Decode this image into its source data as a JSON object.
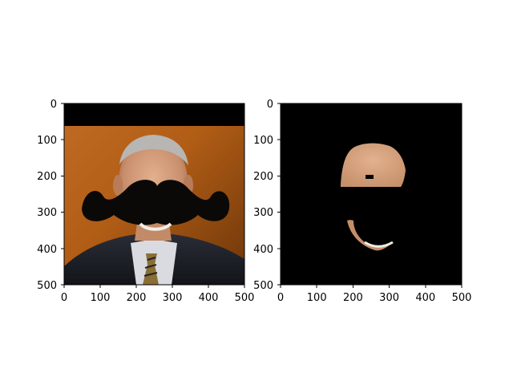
{
  "chart_data": [
    {
      "type": "image",
      "panel": "left",
      "description_of_content": "photo",
      "xlim": [
        0,
        500
      ],
      "ylim": [
        500,
        0
      ],
      "xticks": [
        0,
        100,
        200,
        300,
        400,
        500
      ],
      "yticks": [
        0,
        100,
        200,
        300,
        400,
        500
      ],
      "xtick_labels": [
        "0",
        "100",
        "200",
        "300",
        "400",
        "500"
      ],
      "ytick_labels": [
        "0",
        "100",
        "200",
        "300",
        "400",
        "500"
      ],
      "title": "",
      "xlabel": "",
      "ylabel": ""
    },
    {
      "type": "image",
      "panel": "right",
      "description_of_content": "masked",
      "xlim": [
        0,
        500
      ],
      "ylim": [
        500,
        0
      ],
      "xticks": [
        0,
        100,
        200,
        300,
        400,
        500
      ],
      "yticks": [
        0,
        100,
        200,
        300,
        400,
        500
      ],
      "xtick_labels": [
        "0",
        "100",
        "200",
        "300",
        "400",
        "500"
      ],
      "ytick_labels": [
        "0",
        "100",
        "200",
        "300",
        "400",
        "500"
      ],
      "title": "",
      "xlabel": "",
      "ylabel": ""
    }
  ],
  "colors": {
    "black_band": "#000000",
    "background_orange": "#b8661c",
    "skin": "#d7a887",
    "suit": "#1d1f28",
    "mustache": "#0b0908"
  }
}
